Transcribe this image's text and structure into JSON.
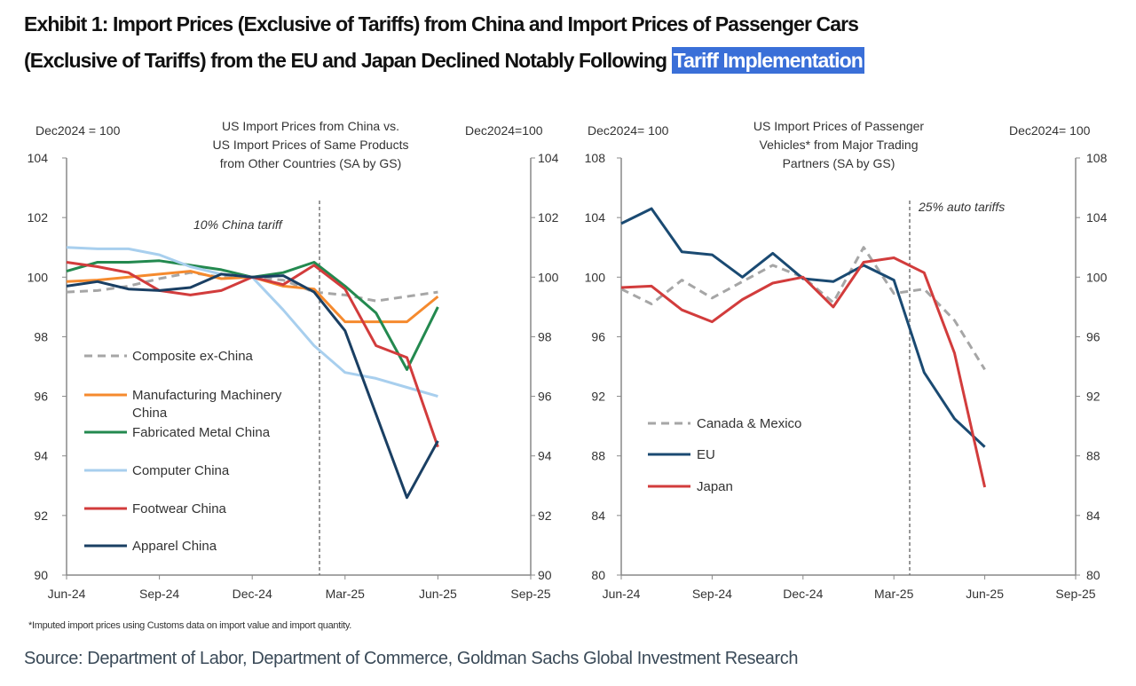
{
  "title": {
    "line1": "Exhibit 1: Import Prices (Exclusive of Tariffs) from China and Import Prices of Passenger Cars",
    "line2_prefix": "(Exclusive of Tariffs) from the EU and Japan Declined Notably Following ",
    "line2_highlight": "Tariff Implementation",
    "highlight_color": "#3a6fd8"
  },
  "footnote": "*Imputed import prices using Customs data on import value and import quantity.",
  "source": "Source: Department of Labor, Department of Commerce, Goldman Sachs Global Investment Research",
  "chart_data": [
    {
      "type": "line",
      "title": [
        "US Import  Prices from  China vs.",
        "US Import  Prices of Same Products",
        "from Other Countries  (SA by GS)"
      ],
      "left_unit": "Dec2024  = 100",
      "right_unit": "Dec2024=100",
      "ylim": [
        90,
        104
      ],
      "yticks": [
        90,
        92,
        94,
        96,
        98,
        100,
        102,
        104
      ],
      "xlim": [
        "Jun-24",
        "Sep-25"
      ],
      "xticks": [
        "Jun-24",
        "Sep-24",
        "Dec-24",
        "Mar-25",
        "Jun-25",
        "Sep-25"
      ],
      "x": [
        "Jun-24",
        "Jul-24",
        "Aug-24",
        "Sep-24",
        "Oct-24",
        "Nov-24",
        "Dec-24",
        "Jan-25",
        "Feb-25",
        "Mar-25",
        "Apr-25",
        "May-25",
        "Jun-25"
      ],
      "annotation": {
        "label": "10% China  tariff",
        "x": "early Feb-25"
      },
      "legend_position": "left",
      "series": [
        {
          "name": "Composite ex-China",
          "color": "#a6a6a6",
          "dashed": true,
          "values": [
            99.5,
            99.55,
            99.7,
            99.95,
            100.15,
            100.0,
            100.0,
            99.9,
            99.5,
            99.4,
            99.2,
            99.35,
            99.5
          ]
        },
        {
          "name": "Manufacturing Machinery China",
          "color": "#f58a2e",
          "dashed": false,
          "values": [
            99.85,
            99.9,
            100.0,
            100.1,
            100.2,
            99.95,
            100.0,
            99.7,
            99.6,
            98.5,
            98.5,
            98.5,
            99.35
          ]
        },
        {
          "name": "Fabricated Metal China",
          "color": "#23894f",
          "dashed": false,
          "values": [
            100.2,
            100.5,
            100.5,
            100.55,
            100.4,
            100.25,
            100.0,
            100.15,
            100.5,
            99.7,
            98.8,
            96.9,
            99.0
          ]
        },
        {
          "name": "Computer China",
          "color": "#a8cfee",
          "dashed": false,
          "values": [
            101.0,
            100.95,
            100.95,
            100.75,
            100.35,
            100.1,
            100.0,
            98.9,
            97.7,
            96.8,
            96.6,
            96.3,
            96.0
          ]
        },
        {
          "name": "Footwear China",
          "color": "#d23c3c",
          "dashed": false,
          "values": [
            100.5,
            100.35,
            100.15,
            99.55,
            99.4,
            99.55,
            100.0,
            99.75,
            100.4,
            99.6,
            97.7,
            97.3,
            94.3
          ]
        },
        {
          "name": "Apparel China",
          "color": "#1a3f63",
          "dashed": false,
          "values": [
            99.7,
            99.85,
            99.6,
            99.55,
            99.65,
            100.1,
            100.0,
            100.05,
            99.5,
            98.2,
            95.4,
            92.6,
            94.5
          ]
        }
      ]
    },
    {
      "type": "line",
      "title": [
        "US Import  Prices of Passenger",
        "Vehicles* from  Major Trading",
        "Partners (SA by GS)"
      ],
      "left_unit": "Dec2024=  100",
      "right_unit": "Dec2024=  100",
      "ylim": [
        80,
        108
      ],
      "yticks": [
        80,
        84,
        88,
        92,
        96,
        100,
        104,
        108
      ],
      "xlim": [
        "Jun-24",
        "Sep-25"
      ],
      "xticks": [
        "Jun-24",
        "Sep-24",
        "Dec-24",
        "Mar-25",
        "Jun-25",
        "Sep-25"
      ],
      "x": [
        "Jun-24",
        "Jul-24",
        "Aug-24",
        "Sep-24",
        "Oct-24",
        "Nov-24",
        "Dec-24",
        "Jan-25",
        "Feb-25",
        "Mar-25",
        "Apr-25",
        "May-25",
        "Jun-25"
      ],
      "annotation": {
        "label": "25% auto tariffs",
        "x": "mid Mar-25"
      },
      "legend_position": "bottom-left",
      "series": [
        {
          "name": "Canada & Mexico",
          "color": "#a6a6a6",
          "dashed": true,
          "values": [
            99.2,
            98.2,
            99.8,
            98.6,
            99.7,
            100.8,
            100.0,
            98.3,
            102.0,
            98.9,
            99.2,
            97.1,
            93.8
          ]
        },
        {
          "name": "EU",
          "color": "#1a4a72",
          "dashed": false,
          "values": [
            103.6,
            104.6,
            101.7,
            101.5,
            100.0,
            101.6,
            99.9,
            99.7,
            100.8,
            99.8,
            93.6,
            90.5,
            88.6
          ]
        },
        {
          "name": "Japan",
          "color": "#d23c3c",
          "dashed": false,
          "values": [
            99.3,
            99.4,
            97.8,
            97.0,
            98.5,
            99.6,
            100.0,
            98.0,
            101.0,
            101.3,
            100.3,
            94.9,
            85.9
          ]
        }
      ]
    }
  ]
}
